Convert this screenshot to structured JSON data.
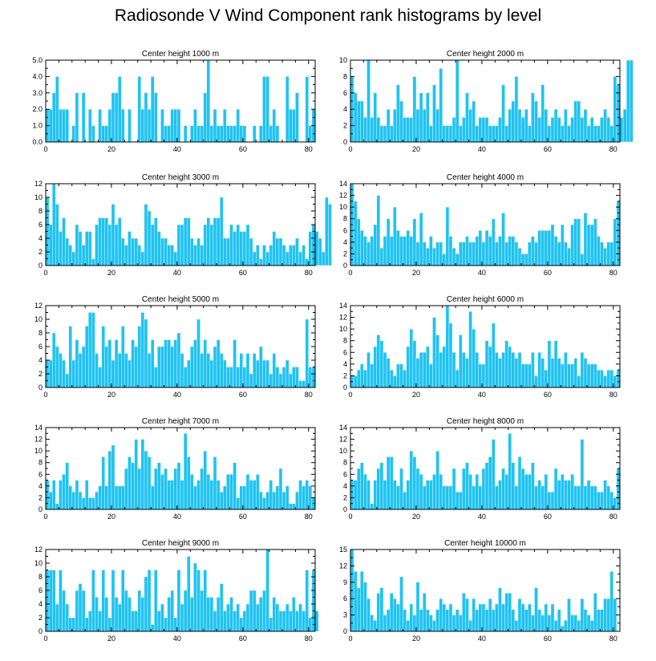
{
  "figure_title": "Radiosonde V Wind Component rank histograms by level",
  "colors": {
    "bar": "#1fc3f2",
    "axis": "#000000",
    "background": "#ffffff"
  },
  "chart_data": [
    {
      "type": "bar",
      "title": "Center height 1000 m",
      "xlim": [
        0,
        82
      ],
      "xticks": [
        0,
        20,
        40,
        60,
        80
      ],
      "ylim": [
        0,
        5
      ],
      "yticks": [
        0,
        1,
        2,
        3,
        4,
        5
      ],
      "ytick_labels": [
        "0.0",
        "1.0",
        "2.0",
        "3.0",
        "4.0",
        "5.0"
      ],
      "values": [
        2,
        2,
        3,
        4,
        2,
        2,
        2,
        0,
        1,
        3,
        0,
        3,
        0,
        2,
        1,
        0,
        2,
        1,
        1,
        2,
        3,
        3,
        4,
        2,
        0,
        2,
        0,
        0,
        4,
        2,
        3,
        2,
        4,
        3,
        0,
        2,
        1,
        1,
        2,
        2,
        2,
        0,
        1,
        0,
        1,
        2,
        1,
        1,
        3,
        5,
        1,
        2,
        1,
        1,
        2,
        1,
        1,
        1,
        2,
        1,
        1,
        0,
        0,
        1,
        0,
        1,
        4,
        4,
        1,
        2,
        1,
        0,
        0,
        4,
        2,
        2,
        3,
        0,
        0,
        4,
        1,
        2
      ]
    },
    {
      "type": "bar",
      "title": "Center height 2000 m",
      "xlim": [
        0,
        82
      ],
      "xticks": [
        0,
        20,
        40,
        60,
        80
      ],
      "ylim": [
        0,
        10
      ],
      "yticks": [
        0,
        2,
        4,
        6,
        8,
        10
      ],
      "ytick_labels": [
        "0",
        "2",
        "4",
        "6",
        "8",
        "10"
      ],
      "values": [
        8,
        6,
        5,
        5,
        3,
        10,
        3,
        6,
        3,
        2,
        2,
        4,
        2,
        4,
        7,
        5,
        3,
        3,
        3,
        8,
        4,
        6,
        4,
        6,
        2,
        7,
        4,
        9,
        2,
        2,
        2,
        3,
        10,
        2,
        3,
        6,
        4,
        5,
        2,
        3,
        3,
        3,
        2,
        2,
        2,
        3,
        7,
        2,
        4,
        5,
        8,
        4,
        3,
        4,
        2,
        6,
        5,
        3,
        7,
        4,
        2,
        3,
        4,
        3,
        2,
        4,
        2,
        3,
        5,
        5,
        3,
        4,
        2,
        3,
        2,
        2,
        3,
        4,
        3,
        2,
        8,
        7,
        3,
        4,
        10,
        10
      ]
    },
    {
      "type": "bar",
      "title": "Center height 3000 m",
      "xlim": [
        0,
        82
      ],
      "xticks": [
        0,
        20,
        40,
        60,
        80
      ],
      "ylim": [
        0,
        12
      ],
      "yticks": [
        0,
        2,
        4,
        6,
        8,
        10,
        12
      ],
      "ytick_labels": [
        "0",
        "2",
        "4",
        "6",
        "8",
        "10",
        "12"
      ],
      "values": [
        10,
        6,
        12,
        9,
        5,
        7,
        4,
        3,
        2,
        6,
        5,
        3,
        5,
        5,
        1,
        6,
        7,
        7,
        7,
        6,
        9,
        6,
        7,
        4,
        3,
        5,
        4,
        4,
        3,
        2,
        9,
        8,
        6,
        7,
        5,
        4,
        4,
        3,
        3,
        2,
        6,
        6,
        7,
        7,
        4,
        3,
        4,
        3,
        6,
        7,
        6,
        7,
        7,
        10,
        4,
        4,
        6,
        5,
        6,
        5,
        5,
        6,
        4,
        2,
        3,
        1,
        3,
        2,
        3,
        5,
        4,
        4,
        3,
        2,
        3,
        3,
        4,
        2,
        3,
        1,
        5,
        6,
        5,
        4,
        2,
        10,
        9
      ]
    },
    {
      "type": "bar",
      "title": "Center height 4000 m",
      "xlim": [
        0,
        82
      ],
      "xticks": [
        0,
        20,
        40,
        60,
        80
      ],
      "ylim": [
        0,
        14
      ],
      "yticks": [
        0,
        2,
        4,
        6,
        8,
        10,
        12,
        14
      ],
      "ytick_labels": [
        "0",
        "2",
        "4",
        "6",
        "8",
        "10",
        "12",
        "14"
      ],
      "values": [
        14,
        11,
        8,
        6,
        5,
        4,
        5,
        7,
        12,
        3,
        5,
        8,
        5,
        10,
        6,
        5,
        5,
        6,
        5,
        8,
        4,
        9,
        4,
        3,
        5,
        3,
        4,
        4,
        2,
        10,
        5,
        3,
        2,
        4,
        4,
        5,
        4,
        4,
        5,
        6,
        4,
        6,
        5,
        8,
        4,
        5,
        9,
        4,
        5,
        5,
        4,
        3,
        2,
        2,
        4,
        5,
        4,
        6,
        6,
        6,
        6,
        7,
        5,
        4,
        7,
        4,
        3,
        7,
        8,
        8,
        2,
        9,
        7,
        7,
        8,
        5,
        4,
        3,
        4,
        4,
        8,
        11
      ]
    },
    {
      "type": "bar",
      "title": "Center height 5000 m",
      "xlim": [
        0,
        82
      ],
      "xticks": [
        0,
        20,
        40,
        60,
        80
      ],
      "ylim": [
        0,
        12
      ],
      "yticks": [
        0,
        2,
        4,
        6,
        8,
        10,
        12
      ],
      "ytick_labels": [
        "0",
        "2",
        "4",
        "6",
        "8",
        "10",
        "12"
      ],
      "values": [
        4,
        4,
        8,
        6,
        5,
        4,
        2,
        9,
        4,
        7,
        5,
        6,
        9,
        11,
        11,
        5,
        3,
        9,
        6,
        7,
        4,
        7,
        5,
        9,
        5,
        4,
        7,
        6,
        9,
        11,
        10,
        5,
        7,
        3,
        6,
        6,
        7,
        7,
        6,
        7,
        8,
        5,
        3,
        4,
        6,
        7,
        10,
        5,
        7,
        5,
        4,
        6,
        7,
        5,
        4,
        3,
        3,
        7,
        3,
        5,
        3,
        5,
        2,
        5,
        4,
        6,
        4,
        4,
        2,
        5,
        3,
        2,
        3,
        4,
        2,
        3,
        3,
        1,
        1,
        10,
        3,
        3
      ]
    },
    {
      "type": "bar",
      "title": "Center height 6000 m",
      "xlim": [
        0,
        82
      ],
      "xticks": [
        0,
        20,
        40,
        60,
        80
      ],
      "ylim": [
        0,
        14
      ],
      "yticks": [
        0,
        2,
        4,
        6,
        8,
        10,
        12,
        14
      ],
      "ytick_labels": [
        "0",
        "2",
        "4",
        "6",
        "8",
        "10",
        "12",
        "14"
      ],
      "values": [
        2,
        2,
        3,
        4,
        3,
        6,
        4,
        7,
        9,
        8,
        6,
        5,
        3,
        2,
        4,
        4,
        3,
        7,
        10,
        8,
        5,
        6,
        6,
        7,
        4,
        12,
        9,
        6,
        7,
        14,
        11,
        6,
        3,
        9,
        6,
        5,
        13,
        10,
        6,
        4,
        4,
        8,
        7,
        11,
        6,
        5,
        6,
        8,
        7,
        6,
        5,
        6,
        4,
        4,
        4,
        6,
        2,
        6,
        5,
        3,
        8,
        5,
        8,
        5,
        4,
        6,
        4,
        4,
        5,
        2,
        6,
        5,
        4,
        4,
        4,
        3,
        3,
        2,
        3,
        3,
        2,
        3
      ]
    },
    {
      "type": "bar",
      "title": "Center height 7000 m",
      "xlim": [
        0,
        82
      ],
      "xticks": [
        0,
        20,
        40,
        60,
        80
      ],
      "ylim": [
        0,
        14
      ],
      "yticks": [
        0,
        2,
        4,
        6,
        8,
        10,
        12,
        14
      ],
      "ytick_labels": [
        "0",
        "2",
        "4",
        "6",
        "8",
        "10",
        "12",
        "14"
      ],
      "values": [
        5,
        3,
        5,
        1,
        5,
        6,
        8,
        4,
        3,
        5,
        3,
        2,
        5,
        2,
        2,
        3,
        4,
        9,
        4,
        10,
        11,
        4,
        4,
        4,
        7,
        9,
        8,
        12,
        7,
        12,
        10,
        9,
        4,
        7,
        8,
        6,
        7,
        5,
        5,
        7,
        8,
        5,
        13,
        9,
        6,
        4,
        5,
        7,
        10,
        6,
        5,
        9,
        5,
        3,
        4,
        6,
        6,
        8,
        2,
        4,
        4,
        6,
        5,
        5,
        6,
        3,
        2,
        3,
        5,
        3,
        4,
        7,
        3,
        4,
        1,
        1,
        3,
        5,
        4,
        5,
        4,
        2
      ]
    },
    {
      "type": "bar",
      "title": "Center height 8000 m",
      "xlim": [
        0,
        82
      ],
      "xticks": [
        0,
        20,
        40,
        60,
        80
      ],
      "ylim": [
        0,
        14
      ],
      "yticks": [
        0,
        2,
        4,
        6,
        8,
        10,
        12,
        14
      ],
      "ytick_labels": [
        "0",
        "2",
        "4",
        "6",
        "8",
        "10",
        "12",
        "14"
      ],
      "values": [
        5,
        5,
        7,
        8,
        6,
        5,
        1,
        5,
        7,
        8,
        5,
        9,
        9,
        5,
        4,
        7,
        3,
        5,
        10,
        9,
        7,
        6,
        4,
        5,
        5,
        6,
        10,
        6,
        4,
        4,
        4,
        7,
        3,
        3,
        7,
        8,
        6,
        4,
        6,
        4,
        7,
        8,
        9,
        12,
        4,
        5,
        7,
        6,
        13,
        8,
        4,
        9,
        7,
        6,
        6,
        8,
        4,
        5,
        4,
        6,
        3,
        3,
        7,
        5,
        6,
        5,
        5,
        6,
        4,
        4,
        12,
        4,
        5,
        4,
        4,
        3,
        3,
        5,
        4,
        3,
        2,
        7
      ]
    },
    {
      "type": "bar",
      "title": "Center height 9000 m",
      "xlim": [
        0,
        82
      ],
      "xticks": [
        0,
        20,
        40,
        60,
        80
      ],
      "ylim": [
        0,
        12
      ],
      "yticks": [
        0,
        2,
        4,
        6,
        8,
        10,
        12
      ],
      "ytick_labels": [
        "0",
        "2",
        "4",
        "6",
        "8",
        "10",
        "12"
      ],
      "values": [
        9,
        9,
        9,
        4,
        9,
        6,
        4,
        2,
        2,
        6,
        7,
        6,
        2,
        3,
        9,
        5,
        3,
        9,
        5,
        2,
        9,
        5,
        4,
        9,
        6,
        5,
        3,
        3,
        6,
        5,
        8,
        9,
        1,
        9,
        3,
        4,
        2,
        5,
        6,
        2,
        9,
        4,
        6,
        11,
        5,
        10,
        9,
        6,
        9,
        5,
        5,
        3,
        5,
        7,
        3,
        4,
        5,
        3,
        4,
        2,
        3,
        4,
        6,
        6,
        4,
        5,
        6,
        12,
        2,
        5,
        4,
        3,
        3,
        4,
        3,
        5,
        3,
        4,
        3,
        9,
        2,
        9,
        3
      ]
    },
    {
      "type": "bar",
      "title": "Center height 10000 m",
      "xlim": [
        0,
        82
      ],
      "xticks": [
        0,
        20,
        40,
        60,
        80
      ],
      "ylim": [
        0,
        15
      ],
      "yticks": [
        0,
        3,
        6,
        9,
        12,
        15
      ],
      "ytick_labels": [
        "0",
        "3",
        "6",
        "9",
        "12",
        "15"
      ],
      "values": [
        15,
        11,
        8,
        11,
        9,
        6,
        3,
        2,
        7,
        8,
        3,
        4,
        7,
        6,
        5,
        10,
        4,
        2,
        5,
        3,
        9,
        4,
        7,
        4,
        3,
        2,
        4,
        6,
        5,
        4,
        5,
        3,
        4,
        3,
        7,
        6,
        2,
        6,
        4,
        5,
        5,
        4,
        6,
        4,
        5,
        8,
        5,
        7,
        7,
        4,
        2,
        6,
        5,
        4,
        5,
        3,
        8,
        4,
        3,
        5,
        3,
        5,
        2,
        4,
        1,
        2,
        6,
        3,
        3,
        2,
        6,
        4,
        3,
        2,
        7,
        4,
        4,
        6,
        6,
        11,
        6
      ]
    }
  ]
}
